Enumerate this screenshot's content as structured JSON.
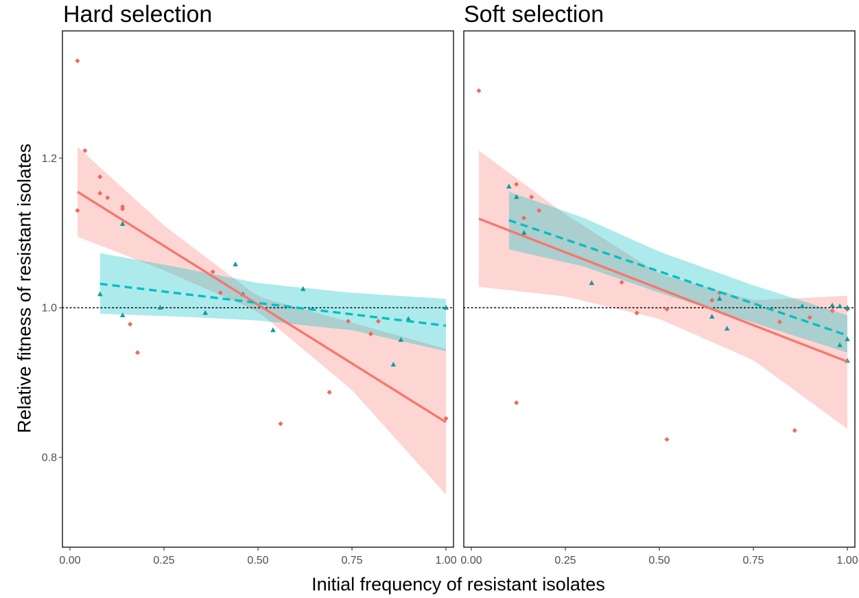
{
  "chart_data": {
    "type": "scatter",
    "xlabel": "Initial frequency of resistant isolates",
    "ylabel": "Relative fitness of resistant isolates",
    "xlim": [
      -0.02,
      1.02
    ],
    "ylim": [
      0.68,
      1.37
    ],
    "x_ticks": [
      0,
      0.25,
      0.5,
      0.75,
      1.0
    ],
    "x_tick_labels": [
      "0.00",
      "0.25",
      "0.50",
      "0.75",
      "1.00"
    ],
    "y_ticks": [
      0.8,
      1.0,
      1.2
    ],
    "y_tick_labels": [
      "0.8",
      "1.0",
      "1.2"
    ],
    "reference_line_y": 1.0,
    "grid": false,
    "legend": "none",
    "colors": {
      "red": "#F8766D",
      "cyan": "#00BFC4",
      "red_marker": "#ED6A62",
      "cyan_marker": "#139AA0"
    },
    "panels": [
      {
        "title": "Hard selection",
        "series": [
          {
            "color": "red",
            "marker": "diamond",
            "line": "solid",
            "points": [
              [
                0.02,
                1.33
              ],
              [
                0.02,
                1.13
              ],
              [
                0.04,
                1.21
              ],
              [
                0.08,
                1.175
              ],
              [
                0.08,
                1.153
              ],
              [
                0.1,
                1.147
              ],
              [
                0.14,
                1.135
              ],
              [
                0.14,
                1.132
              ],
              [
                0.16,
                0.978
              ],
              [
                0.18,
                0.94
              ],
              [
                0.38,
                1.048
              ],
              [
                0.4,
                1.02
              ],
              [
                0.56,
                0.845
              ],
              [
                0.69,
                0.887
              ],
              [
                0.74,
                0.982
              ],
              [
                0.8,
                0.965
              ],
              [
                0.82,
                0.982
              ],
              [
                1.0,
                0.852
              ]
            ],
            "fit": {
              "x": [
                0.02,
                1.0
              ],
              "y": [
                1.155,
                0.847
              ]
            },
            "ribbon": {
              "x": [
                0.02,
                0.25,
                0.5,
                0.75,
                1.0
              ],
              "lower": [
                1.095,
                1.05,
                0.995,
                0.89,
                0.75
              ],
              "upper": [
                1.215,
                1.11,
                1.015,
                0.98,
                0.945
              ]
            }
          },
          {
            "color": "cyan",
            "marker": "triangle",
            "line": "dashed",
            "points": [
              [
                0.08,
                1.018
              ],
              [
                0.14,
                1.112
              ],
              [
                0.14,
                0.99
              ],
              [
                0.24,
                1.0
              ],
              [
                0.36,
                0.993
              ],
              [
                0.44,
                1.058
              ],
              [
                0.46,
                1.018
              ],
              [
                0.54,
                0.97
              ],
              [
                0.62,
                1.025
              ],
              [
                0.86,
                0.924
              ],
              [
                0.88,
                0.957
              ],
              [
                0.9,
                0.985
              ],
              [
                1.0,
                1.0
              ]
            ],
            "fit": {
              "x": [
                0.08,
                1.0
              ],
              "y": [
                1.032,
                0.976
              ]
            },
            "ribbon": {
              "x": [
                0.08,
                0.3,
                0.5,
                0.75,
                1.0
              ],
              "lower": [
                0.992,
                0.988,
                0.983,
                0.97,
                0.942
              ],
              "upper": [
                1.073,
                1.053,
                1.033,
                1.02,
                1.012
              ]
            }
          }
        ]
      },
      {
        "title": "Soft selection",
        "series": [
          {
            "color": "red",
            "marker": "diamond",
            "line": "solid",
            "points": [
              [
                0.02,
                1.29
              ],
              [
                0.12,
                1.165
              ],
              [
                0.12,
                0.873
              ],
              [
                0.14,
                1.12
              ],
              [
                0.16,
                1.148
              ],
              [
                0.18,
                1.13
              ],
              [
                0.4,
                1.034
              ],
              [
                0.44,
                0.993
              ],
              [
                0.52,
                0.998
              ],
              [
                0.52,
                0.824
              ],
              [
                0.64,
                1.01
              ],
              [
                0.66,
                1.02
              ],
              [
                0.82,
                0.981
              ],
              [
                0.86,
                0.836
              ],
              [
                0.9,
                0.987
              ],
              [
                0.96,
                0.996
              ],
              [
                1.0,
                0.998
              ]
            ],
            "fit": {
              "x": [
                0.02,
                1.0
              ],
              "y": [
                1.119,
                0.928
              ]
            },
            "ribbon": {
              "x": [
                0.02,
                0.25,
                0.5,
                0.75,
                1.0
              ],
              "lower": [
                1.028,
                1.015,
                0.985,
                0.93,
                0.838
              ],
              "upper": [
                1.21,
                1.125,
                1.045,
                1.01,
                1.016
              ]
            }
          },
          {
            "color": "cyan",
            "marker": "triangle",
            "line": "dashed",
            "points": [
              [
                0.1,
                1.162
              ],
              [
                0.12,
                1.148
              ],
              [
                0.14,
                1.1
              ],
              [
                0.32,
                1.033
              ],
              [
                0.64,
                0.988
              ],
              [
                0.66,
                1.012
              ],
              [
                0.68,
                0.972
              ],
              [
                0.88,
                1.002
              ],
              [
                0.96,
                1.003
              ],
              [
                0.98,
                1.002
              ],
              [
                0.98,
                0.95
              ],
              [
                1.0,
                1.0
              ],
              [
                1.0,
                0.958
              ],
              [
                1.0,
                0.929
              ]
            ],
            "fit": {
              "x": [
                0.1,
                1.0
              ],
              "y": [
                1.117,
                0.963
              ]
            },
            "ribbon": {
              "x": [
                0.1,
                0.3,
                0.5,
                0.75,
                1.0
              ],
              "lower": [
                1.078,
                1.055,
                1.02,
                0.98,
                0.94
              ],
              "upper": [
                1.155,
                1.12,
                1.075,
                1.03,
                0.99
              ]
            }
          }
        ]
      }
    ]
  }
}
